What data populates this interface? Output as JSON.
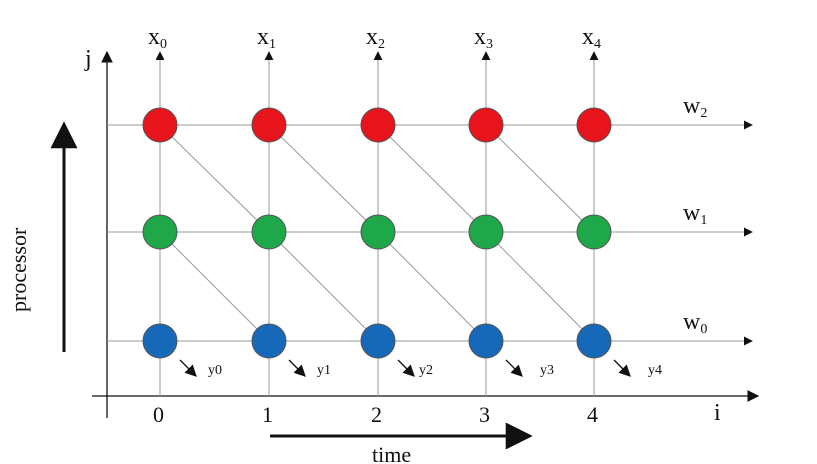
{
  "diagram": {
    "axis_labels": {
      "vertical": "j",
      "horizontal": "i"
    },
    "processor_label": "processor",
    "time_label": "time",
    "column_labels": [
      "0",
      "1",
      "2",
      "3",
      "4"
    ],
    "x_labels": [
      {
        "base": "x",
        "sub": "0"
      },
      {
        "base": "x",
        "sub": "1"
      },
      {
        "base": "x",
        "sub": "2"
      },
      {
        "base": "x",
        "sub": "3"
      },
      {
        "base": "x",
        "sub": "4"
      }
    ],
    "w_labels": [
      {
        "base": "w",
        "sub": "2"
      },
      {
        "base": "w",
        "sub": "1"
      },
      {
        "base": "w",
        "sub": "0"
      }
    ],
    "y_labels": [
      "y0",
      "y1",
      "y2",
      "y3",
      "y4"
    ],
    "row_colors": [
      "#e8141c",
      "#1ea84a",
      "#1668b8"
    ]
  }
}
